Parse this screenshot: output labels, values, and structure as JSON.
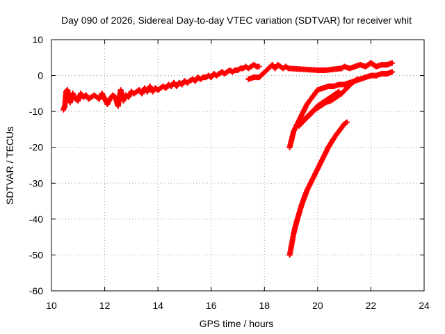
{
  "chart_data": {
    "type": "scatter",
    "title": "Day 090 of 2026, Sidereal Day-to-day VTEC variation (SDTVAR) for receiver whit",
    "xlabel": "GPS time / hours",
    "ylabel": "SDTVAR / TECUs",
    "xlim": [
      10,
      24
    ],
    "ylim": [
      -60,
      10
    ],
    "xticks": [
      10,
      12,
      14,
      16,
      18,
      20,
      22,
      24
    ],
    "yticks": [
      10,
      0,
      -10,
      -20,
      -30,
      -40,
      -50,
      -60
    ],
    "xtick_labels": [
      "10",
      "12",
      "14",
      "16",
      "18",
      "20",
      "22",
      "24"
    ],
    "ytick_labels": [
      "10",
      "0",
      "-10",
      "-20",
      "-30",
      "-40",
      "-50",
      "-60"
    ],
    "grid": true,
    "marker": "plus",
    "color": "#ff0000",
    "series": [
      {
        "name": "main-track",
        "x": [
          10.45,
          10.5,
          10.55,
          10.6,
          10.7,
          10.8,
          10.9,
          11.0,
          11.1,
          11.2,
          11.3,
          11.4,
          11.5,
          11.6,
          11.7,
          11.8,
          11.9,
          12.0,
          12.1,
          12.2,
          12.3,
          12.4,
          12.5,
          12.6,
          12.7,
          12.8,
          12.9,
          13.0,
          13.1,
          13.2,
          13.3,
          13.4,
          13.5,
          13.6,
          13.7,
          13.8,
          13.9,
          14.0,
          14.1,
          14.2,
          14.3,
          14.4,
          14.5,
          14.6,
          14.7,
          14.8,
          14.9,
          15.0,
          15.1,
          15.2,
          15.3,
          15.4,
          15.5,
          15.6,
          15.7,
          15.8,
          15.9,
          16.0,
          16.1,
          16.2,
          16.3,
          16.4,
          16.5,
          16.6,
          16.7,
          16.8,
          16.9,
          17.0,
          17.1,
          17.2,
          17.3,
          17.4,
          17.5,
          17.6,
          17.7,
          17.8
        ],
        "y": [
          -9.5,
          -8.5,
          -4.5,
          -4.0,
          -7.5,
          -5.0,
          -6.5,
          -7.0,
          -5.0,
          -6.0,
          -5.5,
          -6.5,
          -6.0,
          -5.5,
          -6.0,
          -6.5,
          -5.0,
          -6.5,
          -8.0,
          -6.5,
          -5.5,
          -6.0,
          -8.5,
          -4.0,
          -7.0,
          -5.5,
          -6.0,
          -4.5,
          -5.0,
          -4.5,
          -4.0,
          -5.0,
          -3.5,
          -4.5,
          -3.0,
          -4.5,
          -3.5,
          -4.0,
          -3.5,
          -3.0,
          -3.5,
          -2.5,
          -3.0,
          -2.0,
          -3.0,
          -2.0,
          -2.5,
          -1.5,
          -2.0,
          -1.5,
          -1.0,
          -1.5,
          -0.5,
          -1.0,
          -0.5,
          -0.5,
          0.0,
          -0.5,
          0.5,
          0.0,
          0.5,
          1.0,
          0.5,
          1.0,
          1.5,
          1.0,
          1.5,
          1.5,
          2.0,
          2.0,
          2.5,
          2.0,
          2.5,
          3.0,
          2.5,
          2.5
        ]
      },
      {
        "name": "upper-segments",
        "x": [
          17.4,
          17.6,
          17.8,
          18.3,
          18.4,
          18.5,
          18.6,
          18.7,
          18.8,
          18.9,
          20.0,
          20.1,
          20.2,
          20.3,
          20.9,
          21.0,
          21.2,
          21.4,
          21.6,
          21.8,
          22.0,
          22.2,
          22.4,
          22.6,
          22.8
        ],
        "y": [
          -1.0,
          -0.5,
          -0.5,
          3.0,
          2.0,
          3.0,
          2.5,
          2.0,
          2.5,
          2.0,
          1.5,
          1.5,
          1.5,
          1.5,
          2.0,
          2.5,
          2.0,
          2.5,
          3.0,
          2.5,
          3.5,
          2.5,
          3.0,
          3.0,
          3.5
        ]
      },
      {
        "name": "converging-tracks",
        "x": [
          18.95,
          19.0,
          19.05,
          19.1,
          19.2,
          19.3,
          19.4,
          19.5,
          19.6,
          19.8,
          20.0,
          20.2,
          20.4,
          20.6,
          20.8,
          21.0,
          21.2,
          21.4,
          21.6,
          21.8,
          22.0,
          22.2,
          22.4,
          22.6,
          22.8,
          19.3,
          19.5,
          19.7,
          19.9,
          20.1,
          20.3,
          20.5,
          20.7,
          20.9,
          21.1,
          21.3,
          21.5,
          19.4,
          19.6,
          19.8,
          20.0,
          20.2,
          20.4,
          20.6,
          20.8
        ],
        "y": [
          -20.0,
          -18.5,
          -17.0,
          -15.5,
          -14.0,
          -12.5,
          -11.0,
          -9.5,
          -8.0,
          -6.0,
          -4.0,
          -3.5,
          -3.0,
          -3.0,
          -2.5,
          -2.5,
          -2.0,
          -1.5,
          -1.0,
          -0.5,
          0.0,
          0.0,
          0.5,
          0.5,
          1.0,
          -14.0,
          -12.5,
          -11.0,
          -9.5,
          -8.5,
          -7.5,
          -7.0,
          -6.0,
          -5.0,
          -3.5,
          -2.0,
          -1.0,
          -13.0,
          -11.5,
          -10.0,
          -8.5,
          -7.5,
          -6.5,
          -5.5,
          -4.5
        ]
      },
      {
        "name": "descending-track",
        "x": [
          18.95,
          19.0,
          19.05,
          19.1,
          19.15,
          19.2,
          19.3,
          19.4,
          19.5,
          19.6,
          19.7,
          19.8,
          19.9,
          20.0,
          20.1,
          20.2,
          20.3,
          20.4,
          20.5,
          20.6,
          20.7,
          20.8,
          20.9,
          21.0,
          21.1
        ],
        "y": [
          -50.0,
          -48.0,
          -46.0,
          -44.0,
          -42.5,
          -41.0,
          -38.5,
          -36.0,
          -34.0,
          -32.0,
          -30.5,
          -29.0,
          -27.5,
          -26.0,
          -24.5,
          -23.0,
          -21.5,
          -20.0,
          -18.8,
          -17.6,
          -16.5,
          -15.5,
          -14.5,
          -13.5,
          -13.0
        ]
      }
    ]
  }
}
